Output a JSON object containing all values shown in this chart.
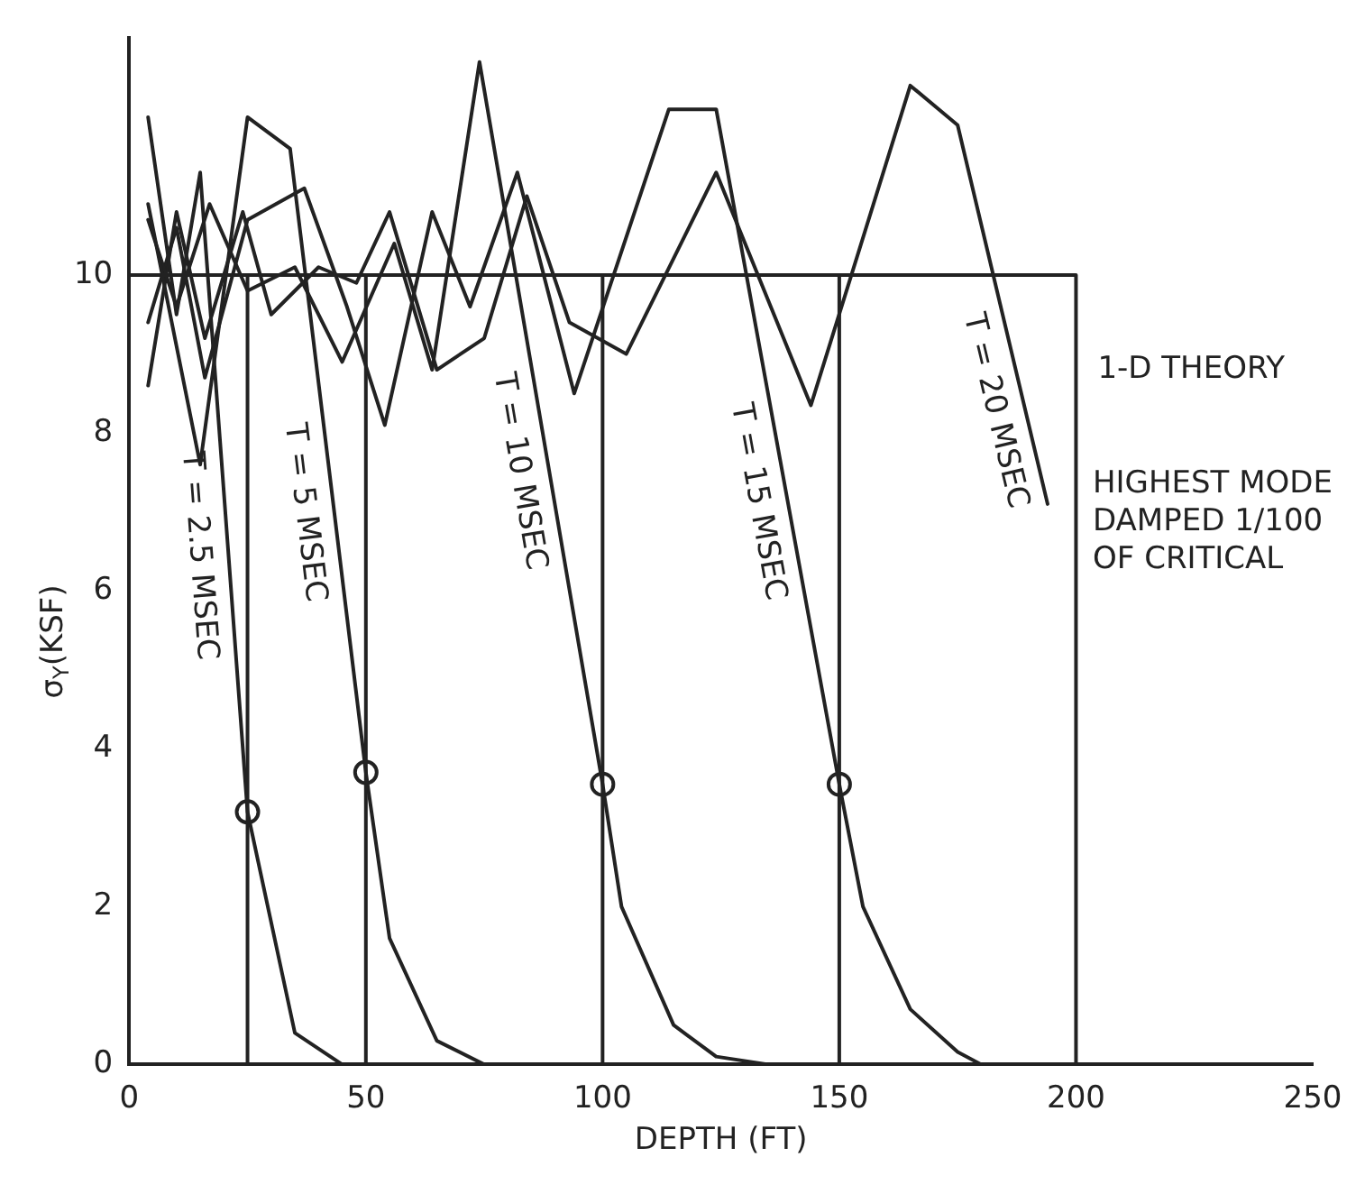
{
  "chart_data": {
    "type": "line",
    "xlabel": "DEPTH (FT)",
    "ylabel": "σ$_{Y}$(KSF)",
    "xlim": [
      0,
      250
    ],
    "xticks": [
      0,
      50,
      100,
      150,
      200,
      250
    ],
    "ylim": [
      0,
      13
    ],
    "yticks": [
      0,
      2,
      4,
      6,
      8,
      10
    ],
    "grid": false,
    "legend": false,
    "annotations": [
      "HIGHEST MODE DAMPED 1/100 OF CRITICAL"
    ],
    "series": [
      {
        "name": "1-D THEORY",
        "color": "#222222",
        "marker": "none",
        "x": [
          0,
          200,
          200
        ],
        "values": [
          10,
          10,
          0
        ]
      },
      {
        "color": "#222222",
        "marker": "none",
        "x": [
          25,
          25
        ],
        "values": [
          10,
          0
        ]
      },
      {
        "color": "#222222",
        "marker": "none",
        "x": [
          50,
          50
        ],
        "values": [
          10,
          0
        ]
      },
      {
        "color": "#222222",
        "marker": "none",
        "x": [
          100,
          100
        ],
        "values": [
          10,
          0
        ]
      },
      {
        "color": "#222222",
        "marker": "none",
        "x": [
          150,
          150
        ],
        "values": [
          10,
          0
        ]
      },
      {
        "name": "T = 2.5 MSEC",
        "color": "#222222",
        "marker": "none",
        "x": [
          4,
          10,
          15,
          25,
          35,
          45
        ],
        "values": [
          12.0,
          9.5,
          11.3,
          3.2,
          0.4,
          0
        ]
      },
      {
        "name": "T = 5 MSEC",
        "color": "#222222",
        "marker": "none",
        "x": [
          4,
          15,
          25,
          34,
          50,
          55,
          65,
          75,
          95
        ],
        "values": [
          10.9,
          7.6,
          12.0,
          11.6,
          3.7,
          1.6,
          0.3,
          0,
          0
        ]
      },
      {
        "name": "T = 10 MSEC",
        "color": "#222222",
        "marker": "none",
        "x": [
          4,
          10,
          17,
          25,
          35,
          45,
          56,
          64,
          74,
          100,
          104,
          115,
          124,
          135
        ],
        "values": [
          10.7,
          9.6,
          10.9,
          9.8,
          10.1,
          8.9,
          10.4,
          8.8,
          12.7,
          3.55,
          2.0,
          0.5,
          0.1,
          0
        ]
      },
      {
        "name": "T = 15 MSEC",
        "color": "#222222",
        "marker": "none",
        "x": [
          4,
          10,
          16,
          25,
          37,
          46,
          54,
          64,
          72,
          82,
          94,
          114,
          124,
          150,
          155,
          165,
          175,
          180
        ],
        "values": [
          9.4,
          10.6,
          8.7,
          10.7,
          11.1,
          9.6,
          8.1,
          10.8,
          9.6,
          11.3,
          8.5,
          12.1,
          12.1,
          3.55,
          2.0,
          0.7,
          0.16,
          0
        ]
      },
      {
        "name": "T = 20 MSEC",
        "color": "#222222",
        "marker": "none",
        "x": [
          4,
          10,
          16,
          24,
          30,
          40,
          48,
          55,
          65,
          75,
          84,
          93,
          105,
          124,
          144,
          165,
          175,
          194
        ],
        "values": [
          8.6,
          10.8,
          9.2,
          10.8,
          9.5,
          10.1,
          9.9,
          10.8,
          8.8,
          9.2,
          11.0,
          9.4,
          9.0,
          11.3,
          8.35,
          12.4,
          11.9,
          7.1
        ]
      },
      {
        "type": "scatter",
        "color": "#222222",
        "marker": "circle",
        "x": [
          25,
          50,
          100,
          150
        ],
        "values": [
          3.2,
          3.7,
          3.55,
          3.55
        ]
      }
    ]
  }
}
